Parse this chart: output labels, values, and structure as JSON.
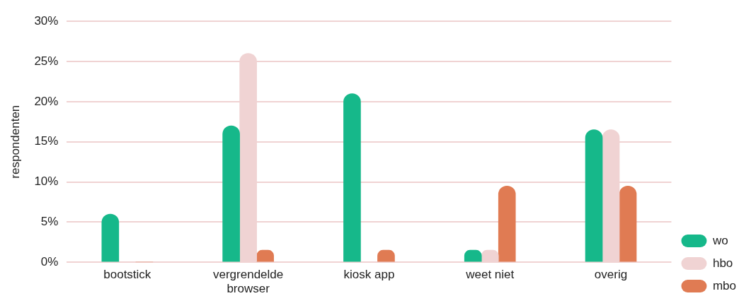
{
  "chart_data": {
    "type": "bar",
    "ylabel": "respondenten",
    "categories": [
      "bootstick",
      "vergrendelde browser",
      "kiosk app",
      "weet niet",
      "overig"
    ],
    "series": [
      {
        "name": "wo",
        "color": "#16b88a",
        "values": [
          6,
          17,
          21,
          1.5,
          16.5
        ]
      },
      {
        "name": "hbo",
        "color": "#f0d3d3",
        "values": [
          0,
          26,
          0,
          1.5,
          16.5
        ]
      },
      {
        "name": "mbo",
        "color": "#e07b53",
        "values": [
          0,
          1.5,
          1.5,
          9.5,
          9.5
        ]
      }
    ],
    "ylim": [
      0,
      30
    ],
    "yticks": [
      {
        "value": 0,
        "label": "0%"
      },
      {
        "value": 5,
        "label": "5%"
      },
      {
        "value": 10,
        "label": "10%"
      },
      {
        "value": 15,
        "label": "15%"
      },
      {
        "value": 20,
        "label": "20%"
      },
      {
        "value": 25,
        "label": "25%"
      },
      {
        "value": 30,
        "label": "30%"
      }
    ],
    "grid": "y",
    "legend": "right"
  }
}
